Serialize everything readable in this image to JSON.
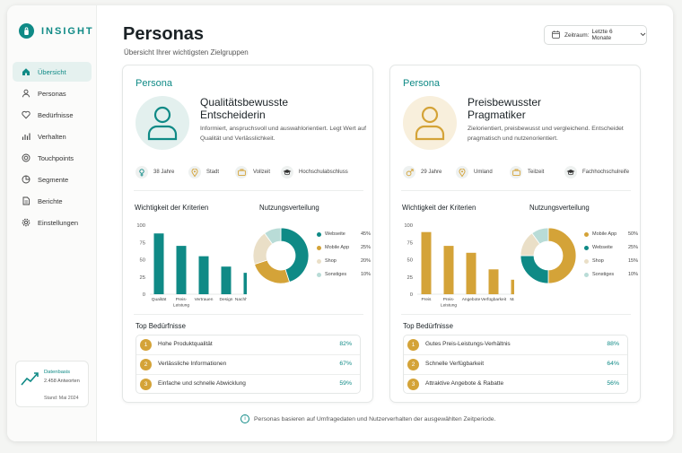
{
  "brand": {
    "name": "INSIGHT"
  },
  "nav": [
    {
      "label": "Übersicht",
      "icon": "home-icon",
      "active": true
    },
    {
      "label": "Personas",
      "icon": "user-icon"
    },
    {
      "label": "Bedürfnisse",
      "icon": "heart-icon"
    },
    {
      "label": "Verhalten",
      "icon": "bar-chart-icon"
    },
    {
      "label": "Touchpoints",
      "icon": "target-icon"
    },
    {
      "label": "Segmente",
      "icon": "segments-icon"
    },
    {
      "label": "Berichte",
      "icon": "document-icon"
    },
    {
      "label": "Einstellungen",
      "icon": "gear-icon"
    }
  ],
  "database": {
    "title": "Datenbasis",
    "count": "2.458 Antworten",
    "date": "Stand: Mai 2024"
  },
  "header": {
    "title": "Personas",
    "subtitle": "Übersicht Ihrer wichtigsten Zielgruppen",
    "range_label": "Zeitraum:",
    "range_value": "Letzte 6 Monate"
  },
  "colors": {
    "teal": "#0f8a86",
    "gold": "#d4a338",
    "sand": "#eadfc7",
    "mint": "#b9dcd7"
  },
  "personas": [
    {
      "label": "Persona",
      "name_line1": "Qualitätsbewusste",
      "name_line2": "Entscheiderin",
      "description": "Informiert, anspruchsvoll und auswahlorientiert. Legt Wert auf Qualität und Verlässlichkeit.",
      "facts": [
        {
          "icon": "female-icon",
          "text": "38 Jahre"
        },
        {
          "icon": "location-icon",
          "text": "Stadt"
        },
        {
          "icon": "briefcase-icon",
          "text": "Vollzeit"
        },
        {
          "icon": "graduation-icon",
          "text": "Hochschulabschluss"
        }
      ],
      "criteria_title": "Wichtigkeit der Kriterien",
      "usage_title": "Nutzungsverteilung",
      "needs_title": "Top Bedürfnisse",
      "needs": [
        {
          "rank": "1",
          "label": "Hohe Produktqualität",
          "value": "82%"
        },
        {
          "rank": "2",
          "label": "Verlässliche Informationen",
          "value": "67%"
        },
        {
          "rank": "3",
          "label": "Einfache und schnelle Abwicklung",
          "value": "59%"
        }
      ]
    },
    {
      "label": "Persona",
      "name_line1": "Preisbewusster",
      "name_line2": "Pragmatiker",
      "description": "Zielorientiert, preisbewusst und vergleichend. Entscheidet pragmatisch und nutzenorientiert.",
      "facts": [
        {
          "icon": "male-icon",
          "text": "29 Jahre"
        },
        {
          "icon": "location-icon",
          "text": "Umland"
        },
        {
          "icon": "briefcase-icon",
          "text": "Teilzeit"
        },
        {
          "icon": "graduation-icon",
          "text": "Fachhochschulreife"
        }
      ],
      "criteria_title": "Wichtigkeit der Kriterien",
      "usage_title": "Nutzungsverteilung",
      "needs_title": "Top Bedürfnisse",
      "needs": [
        {
          "rank": "1",
          "label": "Gutes Preis-Leistungs-Verhältnis",
          "value": "88%"
        },
        {
          "rank": "2",
          "label": "Schnelle Verfügbarkeit",
          "value": "64%"
        },
        {
          "rank": "3",
          "label": "Attraktive Angebote & Rabatte",
          "value": "56%"
        }
      ]
    }
  ],
  "chart_data": [
    {
      "type": "bar",
      "title": "Wichtigkeit der Kriterien",
      "categories": [
        [
          "Qualität"
        ],
        [
          "Preis-",
          "Leistung"
        ],
        [
          "Vertrauen"
        ],
        [
          "Design"
        ],
        [
          "Nachhaltigkeit"
        ]
      ],
      "values": [
        88,
        70,
        55,
        40,
        31
      ],
      "ylim": [
        0,
        100
      ],
      "yticks": [
        "0",
        "25",
        "50",
        "75",
        "100"
      ],
      "color": "#0f8a86"
    },
    {
      "type": "pie",
      "title": "Nutzungsverteilung",
      "slices": [
        {
          "name": "Webseite",
          "value": 45,
          "label": "45%",
          "color": "#0f8a86"
        },
        {
          "name": "Mobile App",
          "value": 25,
          "label": "25%",
          "color": "#d4a338"
        },
        {
          "name": "Shop",
          "value": 20,
          "label": "20%",
          "color": "#eadfc7"
        },
        {
          "name": "Sonstiges",
          "value": 10,
          "label": "10%",
          "color": "#b9dcd7"
        }
      ]
    },
    {
      "type": "bar",
      "title": "Wichtigkeit der Kriterien",
      "categories": [
        [
          "Preis"
        ],
        [
          "Preis-",
          "Leistung"
        ],
        [
          "Angebote"
        ],
        [
          "Verfügbarkeit"
        ],
        [
          "Marke"
        ]
      ],
      "values": [
        90,
        70,
        60,
        36,
        21
      ],
      "ylim": [
        0,
        100
      ],
      "yticks": [
        "0",
        "25",
        "50",
        "75",
        "100"
      ],
      "color": "#d4a338"
    },
    {
      "type": "pie",
      "title": "Nutzungsverteilung",
      "slices": [
        {
          "name": "Mobile App",
          "value": 50,
          "label": "50%",
          "color": "#d4a338"
        },
        {
          "name": "Webseite",
          "value": 25,
          "label": "25%",
          "color": "#0f8a86"
        },
        {
          "name": "Shop",
          "value": 15,
          "label": "15%",
          "color": "#eadfc7"
        },
        {
          "name": "Sonstiges",
          "value": 10,
          "label": "10%",
          "color": "#b9dcd7"
        }
      ]
    }
  ],
  "footnote": "Personas basieren auf Umfragedaten und Nutzerverhalten der ausgewählten Zeitperiode."
}
